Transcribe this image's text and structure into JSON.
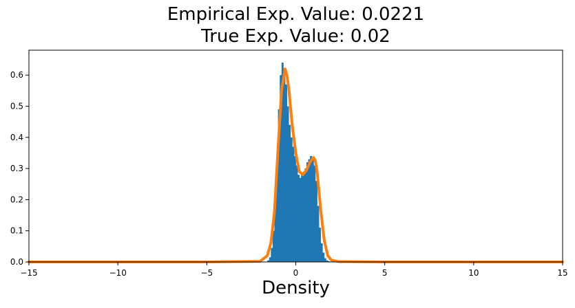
{
  "chart_data": {
    "type": "histogram",
    "title_lines": [
      "Empirical Exp. Value: 0.0221",
      "True Exp. Value: 0.02"
    ],
    "xlabel": "Density",
    "ylabel": "",
    "xlim": [
      -15,
      15
    ],
    "ylim": [
      0,
      0.68
    ],
    "x_ticks": [
      -15,
      -10,
      -5,
      0,
      5,
      10,
      15
    ],
    "x_tick_labels": [
      "−15",
      "−10",
      "−5",
      "0",
      "5",
      "10",
      "15"
    ],
    "y_ticks": [
      0.0,
      0.1,
      0.2,
      0.3,
      0.4,
      0.5,
      0.6
    ],
    "y_tick_labels": [
      "0.0",
      "0.1",
      "0.2",
      "0.3",
      "0.4",
      "0.5",
      "0.6"
    ],
    "grid": false,
    "legend": "none",
    "series": [
      {
        "name": "empirical-histogram",
        "kind": "bars",
        "color": "#1f77b4",
        "bin_width": 0.1,
        "bin_centers": [
          -1.55,
          -1.45,
          -1.35,
          -1.25,
          -1.15,
          -1.05,
          -0.95,
          -0.85,
          -0.75,
          -0.65,
          -0.55,
          -0.45,
          -0.35,
          -0.25,
          -0.15,
          -0.05,
          0.05,
          0.15,
          0.25,
          0.35,
          0.45,
          0.55,
          0.65,
          0.75,
          0.85,
          0.95,
          1.05,
          1.15,
          1.25,
          1.35,
          1.45,
          1.55,
          1.65,
          1.75,
          1.85
        ],
        "values": [
          0.005,
          0.015,
          0.045,
          0.1,
          0.2,
          0.34,
          0.49,
          0.6,
          0.64,
          0.62,
          0.57,
          0.5,
          0.44,
          0.4,
          0.37,
          0.34,
          0.31,
          0.28,
          0.27,
          0.28,
          0.29,
          0.3,
          0.32,
          0.33,
          0.34,
          0.33,
          0.31,
          0.26,
          0.18,
          0.11,
          0.06,
          0.03,
          0.012,
          0.005,
          0.002
        ]
      },
      {
        "name": "true-density",
        "kind": "line",
        "color": "#ff7f0e",
        "x": [
          -15,
          -10,
          -5,
          -2,
          -1.6,
          -1.4,
          -1.2,
          -1.0,
          -0.8,
          -0.6,
          -0.5,
          -0.4,
          -0.2,
          0.0,
          0.2,
          0.4,
          0.6,
          0.8,
          1.0,
          1.1,
          1.2,
          1.4,
          1.6,
          1.8,
          2.0,
          2.4,
          5,
          10,
          15
        ],
        "y": [
          0,
          0,
          0,
          0.002,
          0.02,
          0.06,
          0.16,
          0.36,
          0.55,
          0.62,
          0.6,
          0.56,
          0.44,
          0.35,
          0.29,
          0.28,
          0.295,
          0.32,
          0.335,
          0.325,
          0.29,
          0.17,
          0.07,
          0.02,
          0.006,
          0.001,
          0,
          0,
          0
        ]
      }
    ]
  }
}
